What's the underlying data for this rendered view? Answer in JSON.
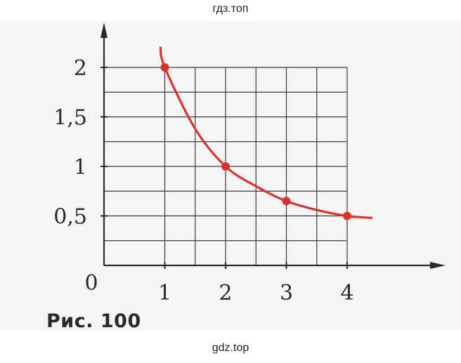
{
  "watermark_top": "гдз.топ",
  "watermark_bottom": "gdz.top",
  "caption": "Рис. 100",
  "colors": {
    "curve": "#d9332b",
    "points": "#d9332b",
    "grid": "#3a3a3a",
    "axes": "#2a2a2a",
    "background": "#f4f5f7"
  },
  "chart_data": {
    "type": "line",
    "title": "",
    "xlabel": "",
    "ylabel": "",
    "origin_label": "0",
    "xlim": [
      0,
      4.5
    ],
    "ylim": [
      0,
      2.25
    ],
    "x_ticks": [
      {
        "value": 1,
        "label": "1"
      },
      {
        "value": 2,
        "label": "2"
      },
      {
        "value": 3,
        "label": "3"
      },
      {
        "value": 4,
        "label": "4"
      }
    ],
    "y_ticks": [
      {
        "value": 0.5,
        "label": "0,5"
      },
      {
        "value": 1,
        "label": "1"
      },
      {
        "value": 1.5,
        "label": "1,5"
      },
      {
        "value": 2,
        "label": "2"
      }
    ],
    "grid": {
      "x_from": 1,
      "x_to": 4,
      "x_step": 0.5,
      "y_from": 0,
      "y_to": 2,
      "y_step": 0.25
    },
    "points": [
      {
        "x": 1,
        "y": 2
      },
      {
        "x": 2,
        "y": 1
      },
      {
        "x": 3,
        "y": 0.65
      },
      {
        "x": 4,
        "y": 0.5
      }
    ],
    "curve": [
      {
        "x": 0.93,
        "y": 2.2
      },
      {
        "x": 1,
        "y": 2
      },
      {
        "x": 1.5,
        "y": 1.38
      },
      {
        "x": 2,
        "y": 1
      },
      {
        "x": 2.5,
        "y": 0.8
      },
      {
        "x": 3,
        "y": 0.65
      },
      {
        "x": 3.5,
        "y": 0.56
      },
      {
        "x": 4,
        "y": 0.5
      },
      {
        "x": 4.4,
        "y": 0.48
      }
    ]
  }
}
